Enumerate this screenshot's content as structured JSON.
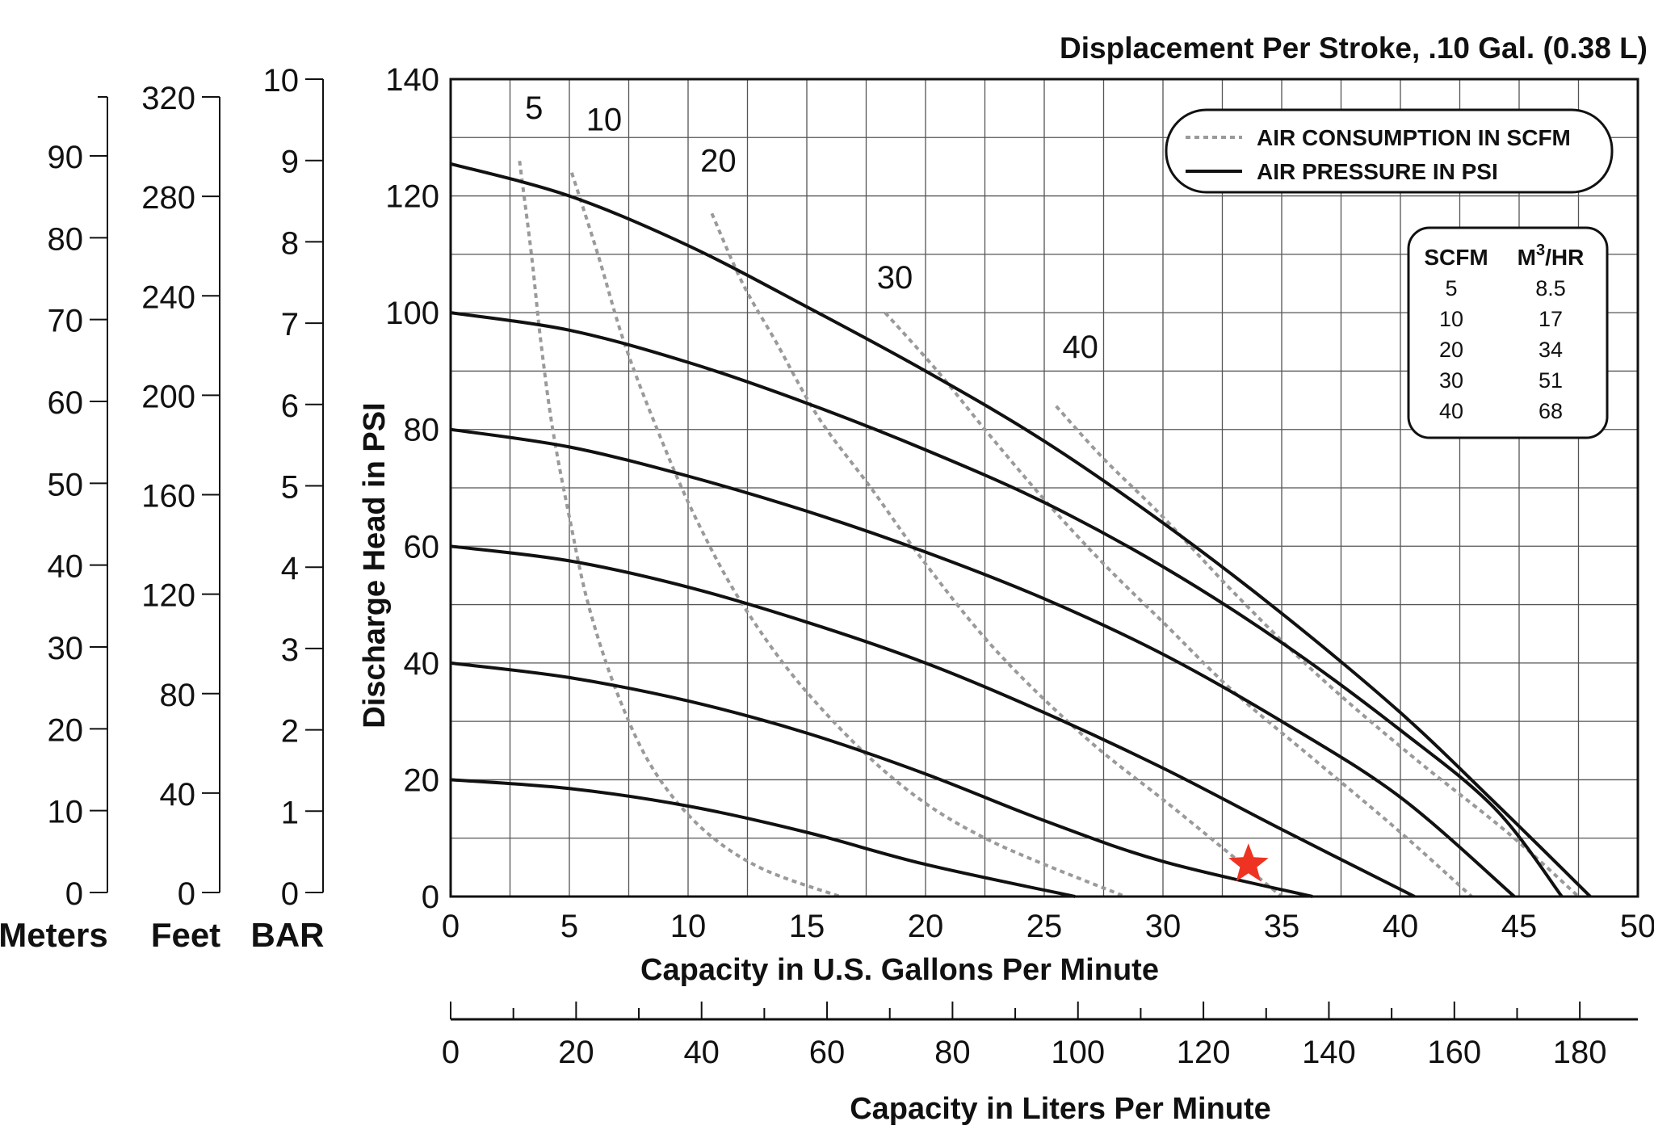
{
  "chart_data": {
    "type": "line",
    "title": "Displacement Per Stroke, .10 Gal. (0.38 L)",
    "xlabel": "Capacity in U.S. Gallons Per Minute",
    "ylabel": "Discharge Head in PSI",
    "xlim": [
      0,
      50
    ],
    "ylim": [
      0,
      140
    ],
    "x_ticks": [
      0,
      5,
      10,
      15,
      20,
      25,
      30,
      35,
      40,
      45,
      50
    ],
    "y_ticks": [
      0,
      20,
      40,
      60,
      80,
      100,
      120,
      140
    ],
    "grid": true,
    "secondary_x_axis": {
      "label": "Capacity in Liters Per Minute",
      "ticks": [
        0,
        20,
        40,
        60,
        80,
        100,
        120,
        140,
        160,
        180
      ]
    },
    "head_scales": [
      {
        "name": "Meters",
        "ticks": [
          "0",
          "10",
          "20",
          "30",
          "40",
          "50",
          "60",
          "70",
          "80",
          "90"
        ]
      },
      {
        "name": "Feet",
        "ticks": [
          "0",
          "40",
          "80",
          "120",
          "160",
          "200",
          "240",
          "280",
          "320"
        ]
      },
      {
        "name": "BAR",
        "ticks": [
          "0",
          "1",
          "2",
          "3",
          "4",
          "5",
          "6",
          "7",
          "8",
          "9",
          "10"
        ]
      }
    ],
    "legend": {
      "position": "top-right",
      "entries": [
        {
          "name": "AIR CONSUMPTION IN SCFM",
          "style": "dashed",
          "color": "#9a9a9a"
        },
        {
          "name": "AIR PRESSURE IN PSI",
          "style": "solid",
          "color": "#111111"
        }
      ]
    },
    "air_pressure_series": [
      {
        "psi": 20,
        "points": [
          [
            0,
            20
          ],
          [
            5,
            18.5
          ],
          [
            10,
            15.5
          ],
          [
            15,
            11
          ],
          [
            20,
            5.5
          ],
          [
            26.3,
            0
          ]
        ]
      },
      {
        "psi": 40,
        "points": [
          [
            0,
            40
          ],
          [
            5,
            37.5
          ],
          [
            10,
            33.5
          ],
          [
            15,
            28
          ],
          [
            20,
            21
          ],
          [
            25,
            13
          ],
          [
            30,
            6
          ],
          [
            36.3,
            0
          ]
        ]
      },
      {
        "psi": 60,
        "points": [
          [
            0,
            60
          ],
          [
            5,
            57.5
          ],
          [
            10,
            53
          ],
          [
            15,
            47
          ],
          [
            20,
            40
          ],
          [
            25,
            31.5
          ],
          [
            30,
            22
          ],
          [
            35,
            11.5
          ],
          [
            40.6,
            0
          ]
        ]
      },
      {
        "psi": 80,
        "points": [
          [
            0,
            80
          ],
          [
            5,
            77
          ],
          [
            10,
            72
          ],
          [
            15,
            66
          ],
          [
            20,
            59
          ],
          [
            25,
            51
          ],
          [
            30,
            41.5
          ],
          [
            35,
            30
          ],
          [
            40,
            17
          ],
          [
            44.8,
            0
          ]
        ]
      },
      {
        "psi": 100,
        "points": [
          [
            0,
            100
          ],
          [
            5,
            97
          ],
          [
            10,
            91.5
          ],
          [
            15,
            84.5
          ],
          [
            20,
            76.5
          ],
          [
            25,
            67.5
          ],
          [
            30,
            56.5
          ],
          [
            35,
            43.5
          ],
          [
            40,
            28.5
          ],
          [
            44,
            15
          ],
          [
            46.8,
            0
          ]
        ]
      },
      {
        "psi": 125,
        "points": [
          [
            0,
            125.5
          ],
          [
            5,
            120
          ],
          [
            10,
            111.5
          ],
          [
            15,
            101
          ],
          [
            20,
            90
          ],
          [
            25,
            78
          ],
          [
            30,
            64
          ],
          [
            35,
            48.5
          ],
          [
            40,
            31.5
          ],
          [
            44,
            16
          ],
          [
            48,
            0
          ]
        ]
      }
    ],
    "air_consumption_series": [
      {
        "scfm": 5,
        "label": "5",
        "points": [
          [
            2.9,
            126
          ],
          [
            3.4,
            110
          ],
          [
            3.8,
            95
          ],
          [
            4.3,
            80
          ],
          [
            5.0,
            65
          ],
          [
            5.8,
            50
          ],
          [
            7.0,
            35
          ],
          [
            8.5,
            22
          ],
          [
            10.5,
            12
          ],
          [
            13.0,
            5
          ],
          [
            16.4,
            0
          ]
        ]
      },
      {
        "scfm": 10,
        "label": "10",
        "points": [
          [
            5.1,
            124
          ],
          [
            6.2,
            110
          ],
          [
            7.3,
            95
          ],
          [
            8.7,
            80
          ],
          [
            10.3,
            65
          ],
          [
            12.3,
            50
          ],
          [
            15.0,
            35
          ],
          [
            18.7,
            20
          ],
          [
            22.5,
            10
          ],
          [
            28.4,
            0
          ]
        ]
      },
      {
        "scfm": 20,
        "label": "20",
        "points": [
          [
            11.0,
            117
          ],
          [
            12.3,
            105
          ],
          [
            13.7,
            95
          ],
          [
            15.5,
            82
          ],
          [
            17.7,
            70
          ],
          [
            20.0,
            57
          ],
          [
            23.0,
            42
          ],
          [
            26.8,
            27
          ],
          [
            30.5,
            15
          ],
          [
            35.0,
            0
          ]
        ]
      },
      {
        "scfm": 30,
        "label": "30",
        "points": [
          [
            18.3,
            100
          ],
          [
            20.5,
            90
          ],
          [
            22.5,
            80
          ],
          [
            25.0,
            68
          ],
          [
            27.5,
            57
          ],
          [
            30.0,
            47
          ],
          [
            33.0,
            35
          ],
          [
            36.5,
            23
          ],
          [
            40.0,
            11
          ],
          [
            43.0,
            0
          ]
        ]
      },
      {
        "scfm": 40,
        "label": "40",
        "points": [
          [
            25.5,
            84
          ],
          [
            27.5,
            75
          ],
          [
            30.0,
            65
          ],
          [
            33.0,
            52
          ],
          [
            36.5,
            38
          ],
          [
            40.5,
            24
          ],
          [
            44.5,
            11
          ],
          [
            47.5,
            0
          ]
        ]
      }
    ],
    "scfm_table": {
      "headers": [
        "SCFM",
        "M",
        "3",
        "/HR"
      ],
      "rows": [
        [
          "5",
          "8.5"
        ],
        [
          "10",
          "17"
        ],
        [
          "20",
          "34"
        ],
        [
          "30",
          "51"
        ],
        [
          "40",
          "68"
        ]
      ]
    },
    "marker": {
      "shape": "star",
      "color": "#ee3322",
      "x": 33.6,
      "y": 5.5
    }
  }
}
